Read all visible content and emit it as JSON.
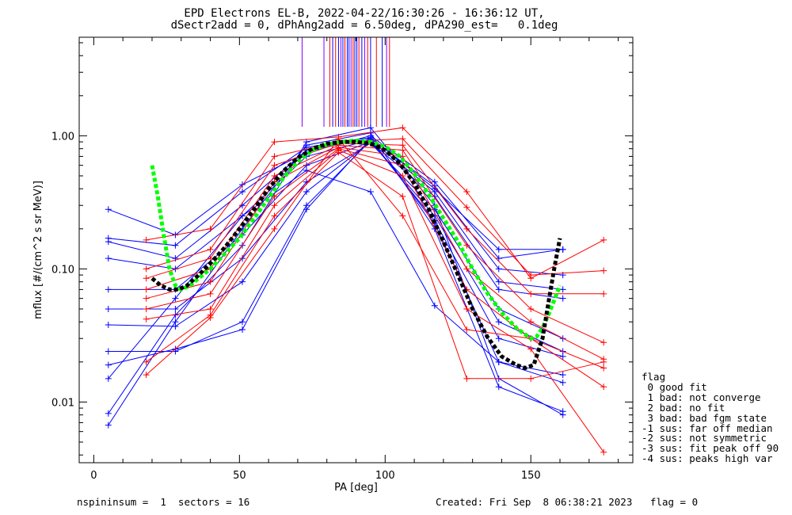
{
  "chart_data": {
    "type": "line",
    "title": "EPD Electrons EL-B, 2022-04-22/16:30:26 - 16:36:12 UT,",
    "subtitle": "dSectr2add = 0, dPhAng2add = 6.50deg, dPA290_est=   0.1deg",
    "xlabel": "PA [deg]",
    "ylabel": "mflux [#/(cm^2 s sr MeV)]",
    "xlim": [
      -5,
      185
    ],
    "ylim": [
      0.0035,
      5.5
    ],
    "yscale": "log",
    "xticks": [
      0,
      50,
      100,
      150
    ],
    "xtick_labels": [
      "0",
      "50",
      "100",
      "150"
    ],
    "yticks": [
      0.01,
      0.1,
      1.0
    ],
    "ytick_labels": [
      "0.01",
      "0.10",
      "1.00"
    ],
    "grid": false,
    "colors": {
      "red": "#ff0000",
      "blue": "#0000ff",
      "purple": "#8000ff",
      "green": "#00ff00",
      "black": "#000000"
    },
    "vlines": [
      {
        "x": 71.5,
        "color": "purple"
      },
      {
        "x": 79,
        "color": "purple"
      },
      {
        "x": 81,
        "color": "red"
      },
      {
        "x": 82,
        "color": "blue"
      },
      {
        "x": 83,
        "color": "red"
      },
      {
        "x": 84,
        "color": "blue"
      },
      {
        "x": 84.8,
        "color": "purple"
      },
      {
        "x": 85.5,
        "color": "blue"
      },
      {
        "x": 86.2,
        "color": "red"
      },
      {
        "x": 87,
        "color": "blue"
      },
      {
        "x": 87.6,
        "color": "blue"
      },
      {
        "x": 88.3,
        "color": "purple"
      },
      {
        "x": 89,
        "color": "red"
      },
      {
        "x": 89.6,
        "color": "blue"
      },
      {
        "x": 90.3,
        "color": "blue"
      },
      {
        "x": 91,
        "color": "red"
      },
      {
        "x": 92,
        "color": "blue"
      },
      {
        "x": 93,
        "color": "purple"
      },
      {
        "x": 94,
        "color": "red"
      },
      {
        "x": 95,
        "color": "blue"
      },
      {
        "x": 97,
        "color": "red"
      },
      {
        "x": 99,
        "color": "blue"
      },
      {
        "x": 100.5,
        "color": "purple"
      },
      {
        "x": 101.5,
        "color": "red"
      }
    ],
    "series": [
      {
        "color": "blue",
        "x": [
          5,
          28,
          51,
          73,
          95,
          117,
          139,
          161
        ],
        "y": [
          0.28,
          0.18,
          0.43,
          0.75,
          1.0,
          0.45,
          0.12,
          0.14
        ]
      },
      {
        "color": "blue",
        "x": [
          5,
          28,
          51,
          73,
          95,
          117,
          139,
          161
        ],
        "y": [
          0.17,
          0.15,
          0.38,
          0.82,
          0.97,
          0.4,
          0.14,
          0.14
        ]
      },
      {
        "color": "blue",
        "x": [
          5,
          28,
          51,
          73,
          95,
          117,
          139,
          161
        ],
        "y": [
          0.16,
          0.12,
          0.3,
          0.78,
          0.95,
          0.42,
          0.1,
          0.09
        ]
      },
      {
        "color": "blue",
        "x": [
          5,
          28,
          51,
          73,
          95,
          117,
          139,
          161
        ],
        "y": [
          0.12,
          0.1,
          0.25,
          0.7,
          0.93,
          0.38,
          0.08,
          0.07
        ]
      },
      {
        "color": "blue",
        "x": [
          5,
          28,
          51,
          73,
          95,
          117,
          139,
          161
        ],
        "y": [
          0.07,
          0.07,
          0.18,
          0.6,
          0.9,
          0.35,
          0.07,
          0.06
        ]
      },
      {
        "color": "blue",
        "x": [
          5,
          28,
          51,
          73,
          95,
          117,
          139,
          161
        ],
        "y": [
          0.05,
          0.05,
          0.12,
          0.45,
          0.88,
          0.28,
          0.05,
          0.03
        ]
      },
      {
        "color": "blue",
        "x": [
          5,
          28,
          51,
          73,
          95,
          117,
          139,
          161
        ],
        "y": [
          0.038,
          0.037,
          0.08,
          0.38,
          0.9,
          0.25,
          0.04,
          0.024
        ]
      },
      {
        "color": "blue",
        "x": [
          5,
          28,
          51,
          73,
          95,
          117,
          139,
          161
        ],
        "y": [
          0.024,
          0.024,
          0.04,
          0.3,
          0.92,
          0.23,
          0.03,
          0.022
        ]
      },
      {
        "color": "blue",
        "x": [
          5,
          28,
          51,
          73,
          95,
          117,
          139,
          161
        ],
        "y": [
          0.019,
          0.025,
          0.035,
          0.28,
          0.95,
          0.22,
          0.02,
          0.014
        ]
      },
      {
        "color": "blue",
        "x": [
          5,
          28,
          51,
          73,
          95,
          117,
          139,
          161
        ],
        "y": [
          0.0082,
          0.045,
          0.15,
          0.9,
          1.15,
          0.3,
          0.015,
          0.008
        ]
      },
      {
        "color": "blue",
        "x": [
          5,
          28,
          51,
          73,
          95,
          117,
          139,
          161
        ],
        "y": [
          0.0067,
          0.04,
          0.2,
          0.85,
          1.05,
          0.2,
          0.013,
          0.0085
        ]
      },
      {
        "color": "blue",
        "x": [
          5,
          28,
          51,
          73,
          95,
          117,
          139,
          161
        ],
        "y": [
          0.015,
          0.06,
          0.25,
          0.55,
          0.38,
          0.053,
          0.02,
          0.016
        ]
      },
      {
        "color": "red",
        "x": [
          18,
          40,
          62,
          84,
          106,
          128,
          150,
          175
        ],
        "y": [
          0.165,
          0.2,
          0.9,
          0.98,
          1.15,
          0.38,
          0.085,
          0.165
        ]
      },
      {
        "color": "red",
        "x": [
          18,
          40,
          62,
          84,
          106,
          128,
          150,
          175
        ],
        "y": [
          0.1,
          0.14,
          0.7,
          0.9,
          0.95,
          0.29,
          0.09,
          0.097
        ]
      },
      {
        "color": "red",
        "x": [
          18,
          40,
          62,
          84,
          106,
          128,
          150,
          175
        ],
        "y": [
          0.085,
          0.12,
          0.6,
          0.88,
          0.85,
          0.2,
          0.065,
          0.065
        ]
      },
      {
        "color": "red",
        "x": [
          18,
          40,
          62,
          84,
          106,
          128,
          150,
          175
        ],
        "y": [
          0.07,
          0.1,
          0.5,
          0.85,
          0.78,
          0.15,
          0.05,
          0.028
        ]
      },
      {
        "color": "red",
        "x": [
          18,
          40,
          62,
          84,
          106,
          128,
          150,
          175
        ],
        "y": [
          0.06,
          0.08,
          0.45,
          0.82,
          0.7,
          0.1,
          0.04,
          0.021
        ]
      },
      {
        "color": "red",
        "x": [
          18,
          40,
          62,
          84,
          106,
          128,
          150,
          175
        ],
        "y": [
          0.05,
          0.065,
          0.35,
          0.8,
          0.6,
          0.07,
          0.03,
          0.013
        ]
      },
      {
        "color": "red",
        "x": [
          18,
          40,
          62,
          84,
          106,
          128,
          150,
          175
        ],
        "y": [
          0.042,
          0.05,
          0.3,
          0.78,
          0.5,
          0.05,
          0.025,
          0.0042
        ]
      },
      {
        "color": "red",
        "x": [
          18,
          40,
          62,
          84,
          106,
          128,
          150,
          175
        ],
        "y": [
          0.02,
          0.045,
          0.25,
          0.75,
          0.35,
          0.015,
          0.015,
          0.02
        ]
      },
      {
        "color": "red",
        "x": [
          18,
          40,
          62,
          84,
          106,
          128,
          150,
          175
        ],
        "y": [
          0.016,
          0.043,
          0.2,
          0.95,
          0.25,
          0.035,
          0.03,
          0.018
        ]
      }
    ],
    "fits": [
      {
        "color": "green",
        "x": [
          20,
          22,
          24,
          26,
          28,
          30,
          33,
          36,
          40,
          45,
          50,
          55,
          60,
          65,
          70,
          75,
          80,
          85,
          90,
          95,
          100,
          105,
          110,
          115,
          120,
          125,
          130,
          135,
          140,
          145,
          150,
          152,
          154,
          156,
          158,
          160
        ],
        "y": [
          0.6,
          0.35,
          0.18,
          0.1,
          0.075,
          0.07,
          0.075,
          0.085,
          0.1,
          0.13,
          0.17,
          0.24,
          0.34,
          0.48,
          0.64,
          0.78,
          0.86,
          0.9,
          0.92,
          0.9,
          0.83,
          0.7,
          0.52,
          0.36,
          0.24,
          0.16,
          0.1,
          0.066,
          0.047,
          0.036,
          0.03,
          0.031,
          0.036,
          0.045,
          0.058,
          0.075
        ]
      },
      {
        "color": "black",
        "x": [
          20,
          23,
          26,
          29,
          32,
          36,
          40,
          45,
          50,
          55,
          60,
          65,
          70,
          75,
          80,
          85,
          90,
          95,
          100,
          105,
          110,
          115,
          120,
          125,
          130,
          135,
          140,
          145,
          148,
          151,
          154,
          156,
          158,
          160
        ],
        "y": [
          0.085,
          0.075,
          0.07,
          0.07,
          0.075,
          0.09,
          0.11,
          0.145,
          0.2,
          0.28,
          0.4,
          0.54,
          0.68,
          0.8,
          0.87,
          0.9,
          0.9,
          0.87,
          0.78,
          0.62,
          0.44,
          0.28,
          0.16,
          0.09,
          0.05,
          0.031,
          0.022,
          0.019,
          0.018,
          0.019,
          0.03,
          0.055,
          0.1,
          0.17
        ]
      }
    ]
  },
  "legend": {
    "items": [
      "flag",
      " 0 good fit",
      " 1 bad: not converge",
      " 2 bad: no fit",
      " 3 bad: bad fgm state",
      "-1 sus: far off median",
      "-2 sus: not symmetric",
      "-3 sus: fit peak off 90",
      "-4 sus: peaks high var"
    ]
  },
  "footer": {
    "left": "nspininsum =  1  sectors = 16",
    "right": "Created: Fri Sep  8 06:38:21 2023   flag = 0"
  }
}
